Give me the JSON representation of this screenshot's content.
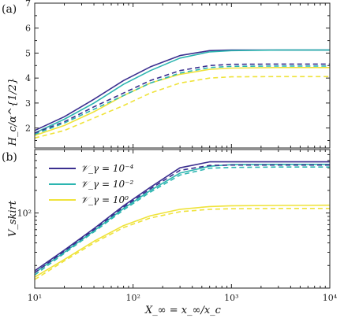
{
  "chart_data": [
    {
      "type": "line",
      "panel_label": "(a)",
      "ylabel": "H_c/α^{1/2}",
      "xscale": "log",
      "xlim": [
        10,
        10000
      ],
      "ylim": [
        1.2,
        7
      ],
      "yticks": [
        2,
        3,
        4,
        5,
        6,
        7
      ],
      "grid": false,
      "series": [
        {
          "name": "𝒱_γ = 10⁻⁴",
          "color": "#3b2f8f",
          "style": "solid",
          "x": [
            10,
            20,
            40,
            80,
            150,
            300,
            600,
            1000,
            3000,
            10000
          ],
          "y": [
            1.9,
            2.45,
            3.15,
            3.9,
            4.45,
            4.9,
            5.1,
            5.12,
            5.12,
            5.12
          ]
        },
        {
          "name": "𝒱_γ = 10⁻²",
          "color": "#2cb5b0",
          "style": "solid",
          "x": [
            10,
            20,
            40,
            80,
            150,
            300,
            600,
            1000,
            3000,
            10000
          ],
          "y": [
            1.8,
            2.35,
            3.0,
            3.75,
            4.3,
            4.8,
            5.05,
            5.1,
            5.12,
            5.12
          ]
        },
        {
          "name": "𝒱_γ = 10⁰",
          "color": "#efe33a",
          "style": "solid",
          "x": [
            10,
            20,
            40,
            80,
            150,
            300,
            600,
            1000,
            3000,
            10000
          ],
          "y": [
            1.7,
            2.1,
            2.65,
            3.3,
            3.8,
            4.15,
            4.35,
            4.4,
            4.42,
            4.42
          ]
        },
        {
          "name": "𝒱_γ = 10⁻⁴",
          "color": "#3b2f8f",
          "style": "dashed",
          "x": [
            10,
            20,
            40,
            80,
            150,
            300,
            600,
            1000,
            3000,
            10000
          ],
          "y": [
            1.8,
            2.25,
            2.85,
            3.4,
            3.9,
            4.3,
            4.5,
            4.55,
            4.56,
            4.56
          ]
        },
        {
          "name": "𝒱_γ = 10⁻²",
          "color": "#2cb5b0",
          "style": "dashed",
          "x": [
            10,
            20,
            40,
            80,
            150,
            300,
            600,
            1000,
            3000,
            10000
          ],
          "y": [
            1.75,
            2.2,
            2.75,
            3.3,
            3.8,
            4.2,
            4.42,
            4.47,
            4.48,
            4.48
          ]
        },
        {
          "name": "𝒱_γ = 10⁰",
          "color": "#efe33a",
          "style": "dashed",
          "x": [
            10,
            20,
            40,
            80,
            150,
            300,
            600,
            1000,
            3000,
            10000
          ],
          "y": [
            1.6,
            1.9,
            2.4,
            2.9,
            3.4,
            3.8,
            4.0,
            4.05,
            4.06,
            4.06
          ]
        }
      ]
    },
    {
      "type": "line",
      "panel_label": "(b)",
      "xlabel": "X_∞ = x_∞/x_c",
      "ylabel": "V_skirt",
      "xscale": "log",
      "yscale": "log",
      "xlim": [
        10,
        10000
      ],
      "ylim": [
        10,
        700
      ],
      "xticks": [
        10,
        100,
        1000,
        10000
      ],
      "xtick_labels": [
        "10¹",
        "10²",
        "10³",
        "10⁴"
      ],
      "yticks": [
        100
      ],
      "ytick_labels": [
        "10²"
      ],
      "legend": "top-left",
      "grid": false,
      "series": [
        {
          "name": "𝒱_γ = 10⁻⁴",
          "color": "#3b2f8f",
          "style": "solid",
          "x": [
            10,
            20,
            40,
            80,
            150,
            300,
            600,
            1000,
            3000,
            10000
          ],
          "y": [
            17,
            32,
            62,
            125,
            220,
            400,
            480,
            480,
            480,
            480
          ]
        },
        {
          "name": "𝒱_γ = 10⁻²",
          "color": "#2cb5b0",
          "style": "solid",
          "x": [
            10,
            20,
            40,
            80,
            150,
            300,
            600,
            1000,
            3000,
            10000
          ],
          "y": [
            16,
            30,
            58,
            115,
            200,
            340,
            420,
            440,
            445,
            445
          ]
        },
        {
          "name": "𝒱_γ = 10⁰",
          "color": "#efe33a",
          "style": "solid",
          "x": [
            10,
            20,
            40,
            80,
            150,
            300,
            600,
            1000,
            3000,
            10000
          ],
          "y": [
            14,
            24,
            42,
            68,
            92,
            112,
            122,
            125,
            126,
            127
          ]
        },
        {
          "name": "𝒱_γ = 10⁻⁴",
          "color": "#3b2f8f",
          "style": "dashed",
          "x": [
            10,
            20,
            40,
            80,
            150,
            300,
            600,
            1000,
            3000,
            10000
          ],
          "y": [
            16,
            31,
            60,
            120,
            210,
            370,
            430,
            435,
            435,
            435
          ]
        },
        {
          "name": "𝒱_γ = 10⁻²",
          "color": "#2cb5b0",
          "style": "dashed",
          "x": [
            10,
            20,
            40,
            80,
            150,
            300,
            600,
            1000,
            3000,
            10000
          ],
          "y": [
            15,
            29,
            56,
            110,
            190,
            320,
            395,
            405,
            410,
            410
          ]
        },
        {
          "name": "𝒱_γ = 10⁰",
          "color": "#efe33a",
          "style": "dashed",
          "x": [
            10,
            20,
            40,
            80,
            150,
            300,
            600,
            1000,
            3000,
            10000
          ],
          "y": [
            13,
            23,
            40,
            64,
            86,
            104,
            112,
            114,
            115,
            115
          ]
        }
      ]
    }
  ],
  "legend": [
    {
      "label": "𝒱_γ = 10⁻⁴",
      "color": "#3b2f8f"
    },
    {
      "label": "𝒱_γ = 10⁻²",
      "color": "#2cb5b0"
    },
    {
      "label": "𝒱_γ = 10⁰",
      "color": "#efe33a"
    }
  ]
}
